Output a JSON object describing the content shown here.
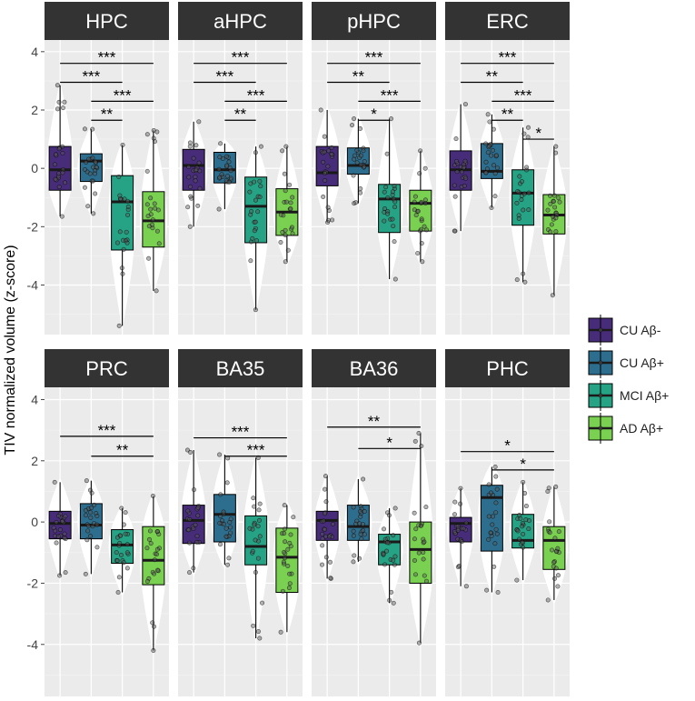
{
  "chart_data": {
    "type": "box",
    "ylabel": "TIV normalized volume (z-score)",
    "ylim": [
      -5.7,
      4.4
    ],
    "yticks": [
      -4,
      -2,
      0,
      2,
      4
    ],
    "groups": [
      "CU Aβ-",
      "CU Aβ+",
      "MCI Aβ+",
      "AD Aβ+"
    ],
    "colors": [
      "#472C7A",
      "#2D6E8E",
      "#26A384",
      "#7AD151"
    ],
    "significance_marks": [
      "*",
      "**",
      "***"
    ],
    "panels": [
      {
        "title": "HPC",
        "boxes": [
          {
            "q1": -0.75,
            "median": -0.05,
            "q3": 0.75,
            "wmin": -1.65,
            "wmax": 2.85
          },
          {
            "q1": -0.45,
            "median": 0.25,
            "q3": 0.5,
            "wmin": -1.55,
            "wmax": 1.35
          },
          {
            "q1": -2.8,
            "median": -1.15,
            "q3": -0.25,
            "wmin": -5.4,
            "wmax": 0.8
          },
          {
            "q1": -2.7,
            "median": -1.8,
            "q3": -0.8,
            "wmin": -4.2,
            "wmax": 1.3
          }
        ],
        "brackets": [
          {
            "from": 1,
            "to": 4,
            "y": 3.6,
            "label": "***"
          },
          {
            "from": 1,
            "to": 3,
            "y": 2.95,
            "label": "***"
          },
          {
            "from": 2,
            "to": 4,
            "y": 2.3,
            "label": "***"
          },
          {
            "from": 2,
            "to": 3,
            "y": 1.65,
            "label": "**"
          }
        ]
      },
      {
        "title": "aHPC",
        "boxes": [
          {
            "q1": -0.75,
            "median": 0.1,
            "q3": 0.65,
            "wmin": -2.0,
            "wmax": 1.6
          },
          {
            "q1": -0.5,
            "median": -0.05,
            "q3": 0.55,
            "wmin": -1.4,
            "wmax": 0.85
          },
          {
            "q1": -2.55,
            "median": -1.3,
            "q3": -0.3,
            "wmin": -4.85,
            "wmax": 0.75
          },
          {
            "q1": -2.3,
            "median": -1.5,
            "q3": -0.7,
            "wmin": -3.2,
            "wmax": 0.75
          }
        ],
        "brackets": [
          {
            "from": 1,
            "to": 4,
            "y": 3.6,
            "label": "***"
          },
          {
            "from": 1,
            "to": 3,
            "y": 2.95,
            "label": "***"
          },
          {
            "from": 2,
            "to": 4,
            "y": 2.3,
            "label": "***"
          },
          {
            "from": 2,
            "to": 3,
            "y": 1.65,
            "label": "**"
          }
        ]
      },
      {
        "title": "pHPC",
        "boxes": [
          {
            "q1": -0.6,
            "median": -0.15,
            "q3": 0.75,
            "wmin": -1.85,
            "wmax": 2.0
          },
          {
            "q1": -0.2,
            "median": 0.1,
            "q3": 0.7,
            "wmin": -1.2,
            "wmax": 1.7
          },
          {
            "q1": -2.2,
            "median": -1.05,
            "q3": -0.55,
            "wmin": -3.8,
            "wmax": 1.7
          },
          {
            "q1": -2.15,
            "median": -1.2,
            "q3": -0.75,
            "wmin": -3.2,
            "wmax": 0.6
          }
        ],
        "brackets": [
          {
            "from": 1,
            "to": 4,
            "y": 3.6,
            "label": "***"
          },
          {
            "from": 1,
            "to": 3,
            "y": 2.95,
            "label": "**"
          },
          {
            "from": 2,
            "to": 4,
            "y": 2.3,
            "label": "***"
          },
          {
            "from": 2,
            "to": 3,
            "y": 1.65,
            "label": "*"
          }
        ]
      },
      {
        "title": "ERC",
        "boxes": [
          {
            "q1": -0.75,
            "median": -0.05,
            "q3": 0.6,
            "wmin": -2.15,
            "wmax": 2.2
          },
          {
            "q1": -0.35,
            "median": -0.1,
            "q3": 0.85,
            "wmin": -1.35,
            "wmax": 1.85
          },
          {
            "q1": -1.95,
            "median": -0.85,
            "q3": -0.05,
            "wmin": -3.9,
            "wmax": 1.4
          },
          {
            "q1": -2.25,
            "median": -1.6,
            "q3": -0.9,
            "wmin": -4.35,
            "wmax": 0.75
          }
        ],
        "brackets": [
          {
            "from": 1,
            "to": 4,
            "y": 3.6,
            "label": "***"
          },
          {
            "from": 1,
            "to": 3,
            "y": 2.95,
            "label": "**"
          },
          {
            "from": 2,
            "to": 4,
            "y": 2.3,
            "label": "***"
          },
          {
            "from": 2,
            "to": 3,
            "y": 1.65,
            "label": "**"
          },
          {
            "from": 3,
            "to": 4,
            "y": 1.0,
            "label": "*"
          }
        ]
      },
      {
        "title": "PRC",
        "boxes": [
          {
            "q1": -0.55,
            "median": -0.05,
            "q3": 0.35,
            "wmin": -1.75,
            "wmax": 1.3
          },
          {
            "q1": -0.55,
            "median": -0.1,
            "q3": 0.6,
            "wmin": -1.7,
            "wmax": 1.35
          },
          {
            "q1": -1.35,
            "median": -0.75,
            "q3": -0.25,
            "wmin": -2.3,
            "wmax": 0.45
          },
          {
            "q1": -2.05,
            "median": -1.25,
            "q3": -0.15,
            "wmin": -4.2,
            "wmax": 0.85
          }
        ],
        "brackets": [
          {
            "from": 1,
            "to": 4,
            "y": 2.8,
            "label": "***"
          },
          {
            "from": 2,
            "to": 4,
            "y": 2.15,
            "label": "**"
          }
        ]
      },
      {
        "title": "BA35",
        "boxes": [
          {
            "q1": -0.7,
            "median": 0.05,
            "q3": 0.55,
            "wmin": -1.65,
            "wmax": 2.35
          },
          {
            "q1": -0.65,
            "median": 0.25,
            "q3": 0.9,
            "wmin": -1.4,
            "wmax": 2.2
          },
          {
            "q1": -1.4,
            "median": -0.8,
            "q3": 0.2,
            "wmin": -3.8,
            "wmax": 2.1
          },
          {
            "q1": -2.3,
            "median": -1.15,
            "q3": -0.2,
            "wmin": -3.6,
            "wmax": 0.55
          }
        ],
        "brackets": [
          {
            "from": 1,
            "to": 4,
            "y": 2.75,
            "label": "***"
          },
          {
            "from": 2,
            "to": 4,
            "y": 2.15,
            "label": "***"
          }
        ]
      },
      {
        "title": "BA36",
        "boxes": [
          {
            "q1": -0.6,
            "median": 0.05,
            "q3": 0.35,
            "wmin": -1.85,
            "wmax": 1.5
          },
          {
            "q1": -0.6,
            "median": -0.15,
            "q3": 0.55,
            "wmin": -1.3,
            "wmax": 1.4
          },
          {
            "q1": -1.4,
            "median": -0.65,
            "q3": -0.4,
            "wmin": -2.65,
            "wmax": 0.45
          },
          {
            "q1": -2.0,
            "median": -0.9,
            "q3": 0.0,
            "wmin": -3.95,
            "wmax": 2.9
          }
        ],
        "brackets": [
          {
            "from": 1,
            "to": 4,
            "y": 3.1,
            "label": "**"
          },
          {
            "from": 2,
            "to": 4,
            "y": 2.4,
            "label": "*"
          }
        ]
      },
      {
        "title": "PHC",
        "boxes": [
          {
            "q1": -0.65,
            "median": -0.05,
            "q3": 0.15,
            "wmin": -2.1,
            "wmax": 1.1
          },
          {
            "q1": -0.95,
            "median": 0.8,
            "q3": 1.2,
            "wmin": -2.3,
            "wmax": 1.8
          },
          {
            "q1": -0.85,
            "median": -0.6,
            "q3": 0.25,
            "wmin": -1.9,
            "wmax": 1.3
          },
          {
            "q1": -1.55,
            "median": -0.6,
            "q3": -0.15,
            "wmin": -2.55,
            "wmax": 1.15
          }
        ],
        "brackets": [
          {
            "from": 1,
            "to": 4,
            "y": 2.3,
            "label": "*"
          },
          {
            "from": 2,
            "to": 4,
            "y": 1.7,
            "label": "*"
          }
        ]
      }
    ]
  }
}
